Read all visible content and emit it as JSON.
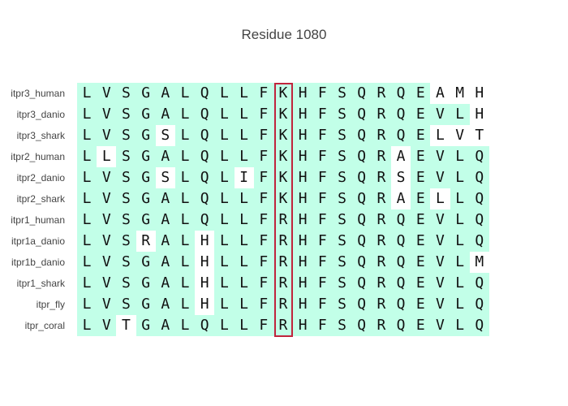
{
  "title": "Residue 1080",
  "colors": {
    "match_bg": "#c2ffe8",
    "mismatch_bg": "#ffffff",
    "highlight_border": "#c0243c"
  },
  "highlight_column": 10,
  "sequences": [
    {
      "name": "itpr3_human",
      "residues": [
        "L",
        "V",
        "S",
        "G",
        "A",
        "L",
        "Q",
        "L",
        "L",
        "F",
        "K",
        "H",
        "F",
        "S",
        "Q",
        "R",
        "Q",
        "E",
        "A",
        "M",
        "H"
      ],
      "diff": [
        18,
        19,
        20
      ]
    },
    {
      "name": "itpr3_danio",
      "residues": [
        "L",
        "V",
        "S",
        "G",
        "A",
        "L",
        "Q",
        "L",
        "L",
        "F",
        "K",
        "H",
        "F",
        "S",
        "Q",
        "R",
        "Q",
        "E",
        "V",
        "L",
        "H"
      ],
      "diff": [
        20
      ]
    },
    {
      "name": "itpr3_shark",
      "residues": [
        "L",
        "V",
        "S",
        "G",
        "S",
        "L",
        "Q",
        "L",
        "L",
        "F",
        "K",
        "H",
        "F",
        "S",
        "Q",
        "R",
        "Q",
        "E",
        "L",
        "V",
        "T"
      ],
      "diff": [
        4,
        18,
        19,
        20
      ]
    },
    {
      "name": "itpr2_human",
      "residues": [
        "L",
        "L",
        "S",
        "G",
        "A",
        "L",
        "Q",
        "L",
        "L",
        "F",
        "K",
        "H",
        "F",
        "S",
        "Q",
        "R",
        "A",
        "E",
        "V",
        "L",
        "Q"
      ],
      "diff": [
        1,
        16
      ]
    },
    {
      "name": "itpr2_danio",
      "residues": [
        "L",
        "V",
        "S",
        "G",
        "S",
        "L",
        "Q",
        "L",
        "I",
        "F",
        "K",
        "H",
        "F",
        "S",
        "Q",
        "R",
        "S",
        "E",
        "V",
        "L",
        "Q"
      ],
      "diff": [
        4,
        8,
        16
      ]
    },
    {
      "name": "itpr2_shark",
      "residues": [
        "L",
        "V",
        "S",
        "G",
        "A",
        "L",
        "Q",
        "L",
        "L",
        "F",
        "K",
        "H",
        "F",
        "S",
        "Q",
        "R",
        "A",
        "E",
        "L",
        "L",
        "Q"
      ],
      "diff": [
        16,
        18
      ]
    },
    {
      "name": "itpr1_human",
      "residues": [
        "L",
        "V",
        "S",
        "G",
        "A",
        "L",
        "Q",
        "L",
        "L",
        "F",
        "R",
        "H",
        "F",
        "S",
        "Q",
        "R",
        "Q",
        "E",
        "V",
        "L",
        "Q"
      ],
      "diff": []
    },
    {
      "name": "itpr1a_danio",
      "residues": [
        "L",
        "V",
        "S",
        "R",
        "A",
        "L",
        "H",
        "L",
        "L",
        "F",
        "R",
        "H",
        "F",
        "S",
        "Q",
        "R",
        "Q",
        "E",
        "V",
        "L",
        "Q"
      ],
      "diff": [
        3,
        6
      ]
    },
    {
      "name": "itpr1b_danio",
      "residues": [
        "L",
        "V",
        "S",
        "G",
        "A",
        "L",
        "H",
        "L",
        "L",
        "F",
        "R",
        "H",
        "F",
        "S",
        "Q",
        "R",
        "Q",
        "E",
        "V",
        "L",
        "M"
      ],
      "diff": [
        6,
        20
      ]
    },
    {
      "name": "itpr1_shark",
      "residues": [
        "L",
        "V",
        "S",
        "G",
        "A",
        "L",
        "H",
        "L",
        "L",
        "F",
        "R",
        "H",
        "F",
        "S",
        "Q",
        "R",
        "Q",
        "E",
        "V",
        "L",
        "Q"
      ],
      "diff": [
        6
      ]
    },
    {
      "name": "itpr_fly",
      "residues": [
        "L",
        "V",
        "S",
        "G",
        "A",
        "L",
        "H",
        "L",
        "L",
        "F",
        "R",
        "H",
        "F",
        "S",
        "Q",
        "R",
        "Q",
        "E",
        "V",
        "L",
        "Q"
      ],
      "diff": [
        6
      ]
    },
    {
      "name": "itpr_coral",
      "residues": [
        "L",
        "V",
        "T",
        "G",
        "A",
        "L",
        "Q",
        "L",
        "L",
        "F",
        "R",
        "H",
        "F",
        "S",
        "Q",
        "R",
        "Q",
        "E",
        "V",
        "L",
        "Q"
      ],
      "diff": [
        2
      ]
    }
  ]
}
